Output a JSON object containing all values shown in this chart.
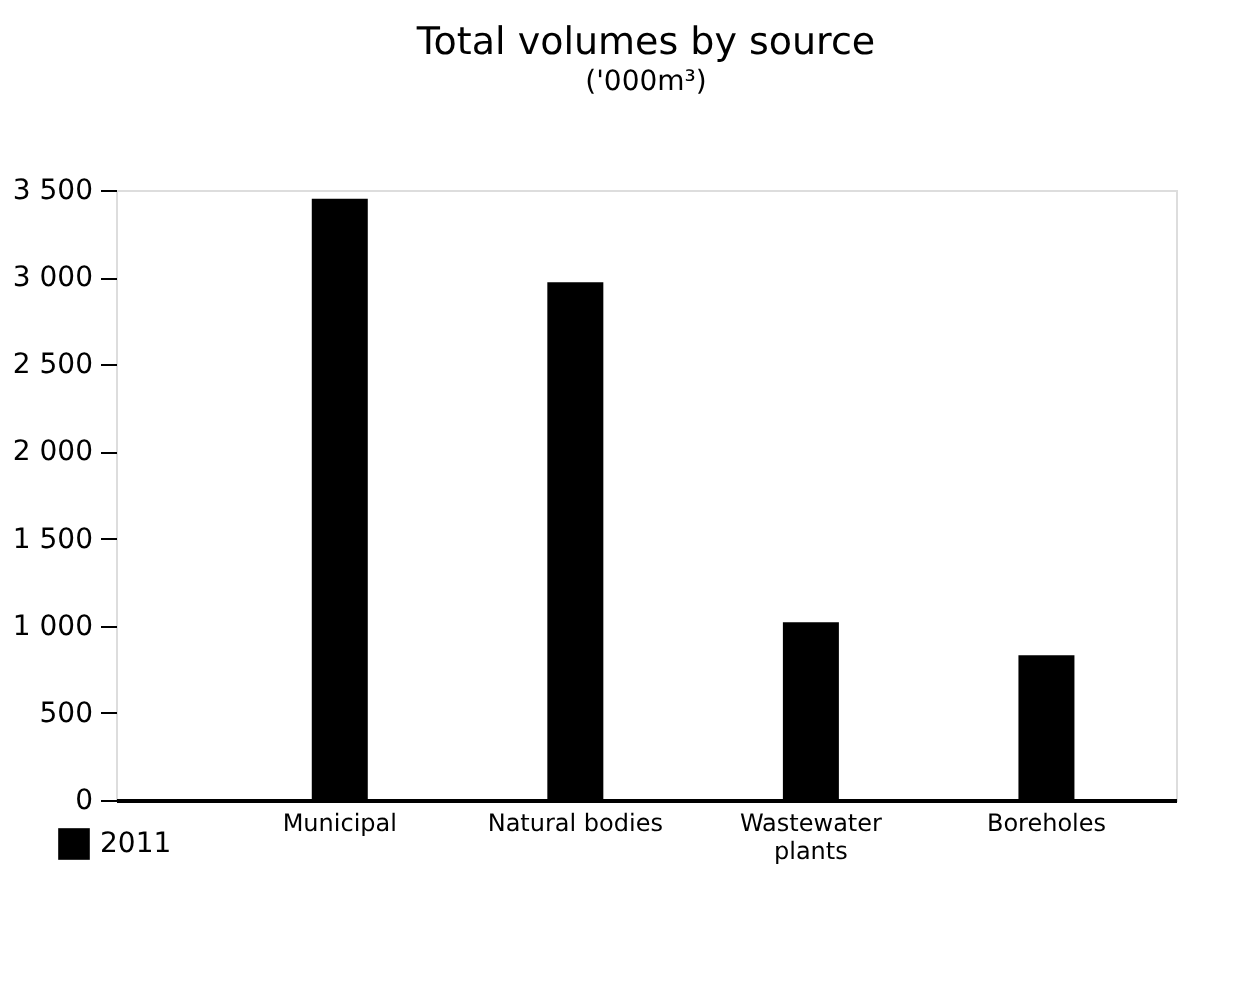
{
  "chart_data": {
    "type": "bar",
    "title": "Total volumes by source",
    "subtitle": "('000m³)",
    "categories": [
      "Municipal",
      "Natural bodies",
      "Wastewater\nplants",
      "Boreholes"
    ],
    "series": [
      {
        "name": "2011",
        "color": "#000000",
        "values": [
          3450,
          2970,
          1020,
          830
        ]
      }
    ],
    "ylim": [
      0,
      3500
    ],
    "yticks": [
      0,
      500,
      {
        "value": 1000,
        "label": "1 000"
      },
      {
        "value": 1500,
        "label": "1 500"
      },
      {
        "value": 2000,
        "label": "2 000"
      },
      {
        "value": 2500,
        "label": "2 500"
      },
      {
        "value": 3000,
        "label": "3 000"
      },
      {
        "value": 3500,
        "label": "3 500"
      }
    ],
    "grid": false,
    "legend": "bottom left"
  }
}
